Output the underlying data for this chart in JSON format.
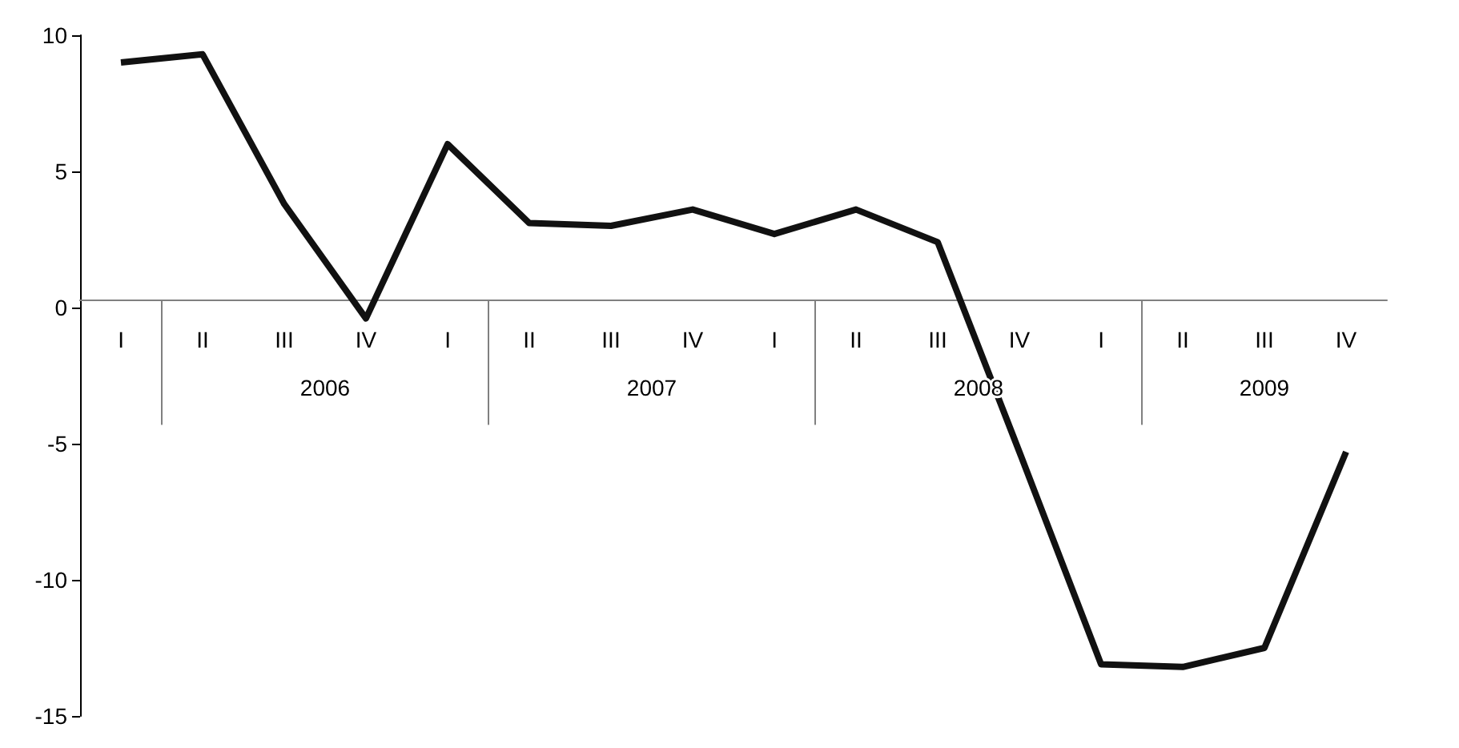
{
  "chart_data": {
    "type": "line",
    "categories": [
      "I",
      "II",
      "III",
      "IV",
      "I",
      "II",
      "III",
      "IV",
      "I",
      "II",
      "III",
      "IV",
      "I",
      "II",
      "III",
      "IV"
    ],
    "series": [
      {
        "color": "#111111",
        "values": [
          9.0,
          9.3,
          3.8,
          -0.4,
          6.0,
          3.1,
          3.0,
          3.6,
          2.7,
          3.6,
          2.4,
          -5.3,
          -13.1,
          -13.2,
          -12.5,
          -5.3
        ]
      }
    ],
    "annotations": [
      "2006",
      "2007",
      "2008",
      "2009"
    ],
    "ylim": [
      -15,
      10
    ],
    "yticks": [
      -15,
      -10,
      -5,
      0,
      5,
      10
    ],
    "marker": "none",
    "line_style": "solid"
  }
}
